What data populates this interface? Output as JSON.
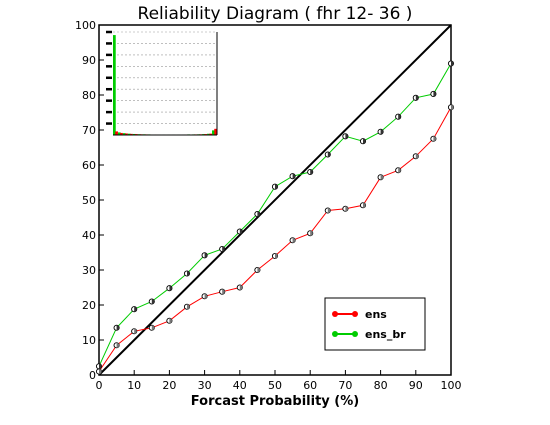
{
  "chart_data": {
    "type": "line",
    "title": "Reliability Diagram ( fhr  12- 36 )",
    "xlabel": "Forcast Probability (%)",
    "ylabel": "",
    "xlim": [
      0,
      100
    ],
    "ylim": [
      0,
      100
    ],
    "x_ticks": [
      "0",
      "10",
      "20",
      "30",
      "40",
      "50",
      "60",
      "70",
      "80",
      "90",
      "100"
    ],
    "y_ticks": [
      "0",
      "10",
      "20",
      "30",
      "40",
      "50",
      "60",
      "70",
      "80",
      "90",
      "100"
    ],
    "diagonal_line": true,
    "legend_position": "bottom-right",
    "series": [
      {
        "name": "ens",
        "color": "#ff0000",
        "x": [
          0,
          5,
          10,
          15,
          20,
          25,
          30,
          35,
          40,
          45,
          50,
          55,
          60,
          65,
          70,
          75,
          80,
          85,
          90,
          95,
          100
        ],
        "values": [
          1.0,
          8.5,
          12.5,
          13.5,
          15.5,
          19.5,
          22.5,
          23.8,
          25.0,
          30.0,
          34.0,
          38.5,
          40.5,
          47.0,
          47.5,
          48.5,
          56.5,
          58.5,
          62.5,
          67.5,
          76.5
        ]
      },
      {
        "name": "ens_br",
        "color": "#00cc00",
        "x": [
          0,
          5,
          10,
          15,
          20,
          25,
          30,
          35,
          40,
          45,
          50,
          55,
          60,
          65,
          70,
          75,
          80,
          85,
          90,
          95,
          100
        ],
        "values": [
          2.5,
          13.5,
          18.8,
          21.0,
          24.8,
          29.0,
          34.2,
          36.0,
          41.0,
          46.0,
          53.8,
          56.8,
          58.0,
          63.0,
          68.2,
          66.8,
          69.5,
          73.8,
          79.2,
          80.3,
          89.0
        ]
      }
    ],
    "inset_histogram": {
      "ens_br": [
        97,
        2.5,
        1.8,
        1.3,
        1.0,
        0.8,
        0.7,
        0.6,
        0.5,
        0.5,
        0.5,
        0.5,
        0.5,
        0.5,
        0.5,
        0.6,
        0.6,
        0.7,
        0.9,
        1.2,
        4.5
      ],
      "ens": [
        3.5,
        2.0,
        1.5,
        1.1,
        0.9,
        0.7,
        0.6,
        0.5,
        0.5,
        0.4,
        0.4,
        0.4,
        0.4,
        0.4,
        0.5,
        0.5,
        0.6,
        0.7,
        0.9,
        1.3,
        6.0
      ]
    }
  }
}
